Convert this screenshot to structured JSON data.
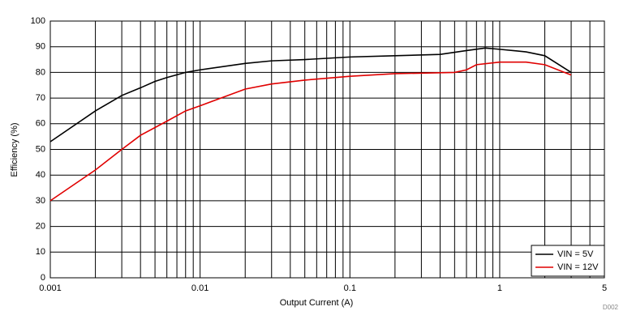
{
  "chart_data": {
    "type": "line",
    "x_label": "Output Current (A)",
    "y_label": "Efficiency (%)",
    "note": "D002",
    "xscale": "log",
    "xlim": [
      0.001,
      5
    ],
    "xticks": [
      0.001,
      0.01,
      0.1,
      1,
      5
    ],
    "xminor": [
      0.002,
      0.003,
      0.004,
      0.005,
      0.006,
      0.007,
      0.008,
      0.009,
      0.02,
      0.03,
      0.04,
      0.05,
      0.06,
      0.07,
      0.08,
      0.09,
      0.2,
      0.3,
      0.4,
      0.5,
      0.6,
      0.7,
      0.8,
      0.9,
      2,
      3,
      4
    ],
    "ylim": [
      0,
      100
    ],
    "yticks": [
      0,
      10,
      20,
      30,
      40,
      50,
      60,
      70,
      80,
      90,
      100
    ],
    "grid": true,
    "legend": "lower right",
    "series": [
      {
        "name": "VIN = 5V",
        "color": "#000000",
        "x": [
          0.001,
          0.002,
          0.003,
          0.004,
          0.005,
          0.006,
          0.008,
          0.01,
          0.02,
          0.03,
          0.05,
          0.1,
          0.2,
          0.4,
          0.6,
          0.8,
          1,
          1.5,
          2,
          3
        ],
        "values": [
          53,
          65,
          71,
          74,
          76.5,
          78,
          80,
          81,
          83.5,
          84.5,
          85,
          86,
          86.5,
          87,
          88.5,
          89.5,
          89,
          88,
          86.5,
          80
        ]
      },
      {
        "name": "VIN = 12V",
        "color": "#e00000",
        "x": [
          0.001,
          0.002,
          0.003,
          0.004,
          0.006,
          0.008,
          0.01,
          0.02,
          0.03,
          0.05,
          0.1,
          0.2,
          0.5,
          0.6,
          0.7,
          1,
          1.5,
          2,
          3
        ],
        "values": [
          30,
          42,
          50,
          55.5,
          61,
          65,
          67,
          73.5,
          75.5,
          77,
          78.5,
          79.5,
          80,
          81,
          83,
          84,
          84,
          83,
          79
        ]
      }
    ]
  }
}
